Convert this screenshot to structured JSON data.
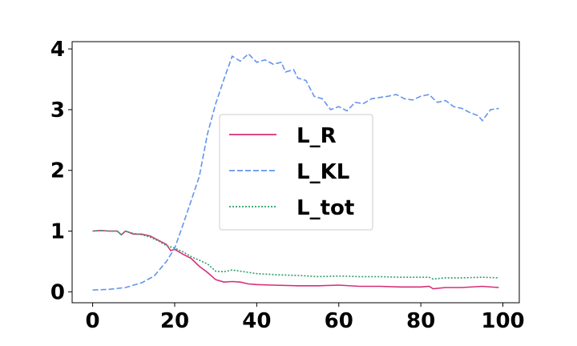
{
  "chart_data": {
    "type": "line",
    "title": "",
    "xlabel": "",
    "ylabel": "",
    "xlim": [
      -5,
      104
    ],
    "ylim": [
      -0.18,
      4.12
    ],
    "x_ticks": [
      0,
      20,
      40,
      60,
      80,
      100
    ],
    "y_ticks": [
      0,
      1,
      2,
      3,
      4
    ],
    "x_tick_labels": [
      "0",
      "20",
      "40",
      "60",
      "80",
      "100"
    ],
    "y_tick_labels": [
      "0",
      "1",
      "2",
      "3",
      "4"
    ],
    "grid": false,
    "legend_position": "center",
    "series": [
      {
        "name": "L_R",
        "color": "#d62f7a",
        "style": "solid",
        "points": [
          [
            0,
            1.0
          ],
          [
            2,
            1.01
          ],
          [
            4,
            1.0
          ],
          [
            6,
            1.0
          ],
          [
            7,
            0.94
          ],
          [
            8,
            1.0
          ],
          [
            10,
            0.95
          ],
          [
            12,
            0.95
          ],
          [
            14,
            0.92
          ],
          [
            16,
            0.85
          ],
          [
            18,
            0.78
          ],
          [
            19,
            0.68
          ],
          [
            20,
            0.7
          ],
          [
            22,
            0.62
          ],
          [
            24,
            0.55
          ],
          [
            26,
            0.42
          ],
          [
            28,
            0.32
          ],
          [
            30,
            0.2
          ],
          [
            32,
            0.16
          ],
          [
            34,
            0.17
          ],
          [
            36,
            0.16
          ],
          [
            38,
            0.13
          ],
          [
            40,
            0.12
          ],
          [
            44,
            0.11
          ],
          [
            50,
            0.1
          ],
          [
            55,
            0.1
          ],
          [
            60,
            0.11
          ],
          [
            65,
            0.09
          ],
          [
            70,
            0.09
          ],
          [
            75,
            0.08
          ],
          [
            80,
            0.08
          ],
          [
            82,
            0.09
          ],
          [
            83,
            0.05
          ],
          [
            86,
            0.07
          ],
          [
            90,
            0.07
          ],
          [
            95,
            0.09
          ],
          [
            99,
            0.07
          ]
        ]
      },
      {
        "name": "L_KL",
        "color": "#6495ed",
        "style": "dashed",
        "points": [
          [
            0,
            0.03
          ],
          [
            4,
            0.04
          ],
          [
            8,
            0.07
          ],
          [
            12,
            0.15
          ],
          [
            15,
            0.26
          ],
          [
            18,
            0.5
          ],
          [
            20,
            0.72
          ],
          [
            22,
            1.1
          ],
          [
            24,
            1.5
          ],
          [
            26,
            1.9
          ],
          [
            28,
            2.6
          ],
          [
            30,
            3.1
          ],
          [
            32,
            3.5
          ],
          [
            34,
            3.88
          ],
          [
            36,
            3.8
          ],
          [
            38,
            3.92
          ],
          [
            40,
            3.78
          ],
          [
            42,
            3.82
          ],
          [
            44,
            3.75
          ],
          [
            46,
            3.78
          ],
          [
            47,
            3.62
          ],
          [
            49,
            3.66
          ],
          [
            50,
            3.52
          ],
          [
            52,
            3.48
          ],
          [
            54,
            3.22
          ],
          [
            56,
            3.18
          ],
          [
            58,
            3.0
          ],
          [
            60,
            3.05
          ],
          [
            62,
            2.98
          ],
          [
            64,
            3.12
          ],
          [
            66,
            3.1
          ],
          [
            68,
            3.18
          ],
          [
            70,
            3.2
          ],
          [
            72,
            3.22
          ],
          [
            74,
            3.25
          ],
          [
            76,
            3.18
          ],
          [
            78,
            3.16
          ],
          [
            80,
            3.22
          ],
          [
            82,
            3.25
          ],
          [
            84,
            3.12
          ],
          [
            86,
            3.15
          ],
          [
            88,
            3.05
          ],
          [
            90,
            3.02
          ],
          [
            92,
            2.95
          ],
          [
            94,
            2.9
          ],
          [
            95,
            2.82
          ],
          [
            97,
            3.0
          ],
          [
            99,
            3.02
          ]
        ]
      },
      {
        "name": "L_tot",
        "color": "#2e9e6a",
        "style": "dotted",
        "points": [
          [
            0,
            1.0
          ],
          [
            2,
            1.01
          ],
          [
            4,
            1.0
          ],
          [
            6,
            1.0
          ],
          [
            7,
            0.94
          ],
          [
            8,
            1.0
          ],
          [
            10,
            0.96
          ],
          [
            12,
            0.94
          ],
          [
            14,
            0.9
          ],
          [
            16,
            0.84
          ],
          [
            18,
            0.76
          ],
          [
            20,
            0.72
          ],
          [
            22,
            0.66
          ],
          [
            24,
            0.58
          ],
          [
            26,
            0.52
          ],
          [
            28,
            0.46
          ],
          [
            30,
            0.34
          ],
          [
            32,
            0.33
          ],
          [
            34,
            0.36
          ],
          [
            36,
            0.34
          ],
          [
            40,
            0.3
          ],
          [
            45,
            0.28
          ],
          [
            50,
            0.27
          ],
          [
            55,
            0.25
          ],
          [
            60,
            0.26
          ],
          [
            65,
            0.25
          ],
          [
            70,
            0.25
          ],
          [
            75,
            0.24
          ],
          [
            80,
            0.24
          ],
          [
            82,
            0.24
          ],
          [
            83,
            0.21
          ],
          [
            86,
            0.23
          ],
          [
            90,
            0.23
          ],
          [
            95,
            0.24
          ],
          [
            99,
            0.23
          ]
        ]
      }
    ]
  }
}
